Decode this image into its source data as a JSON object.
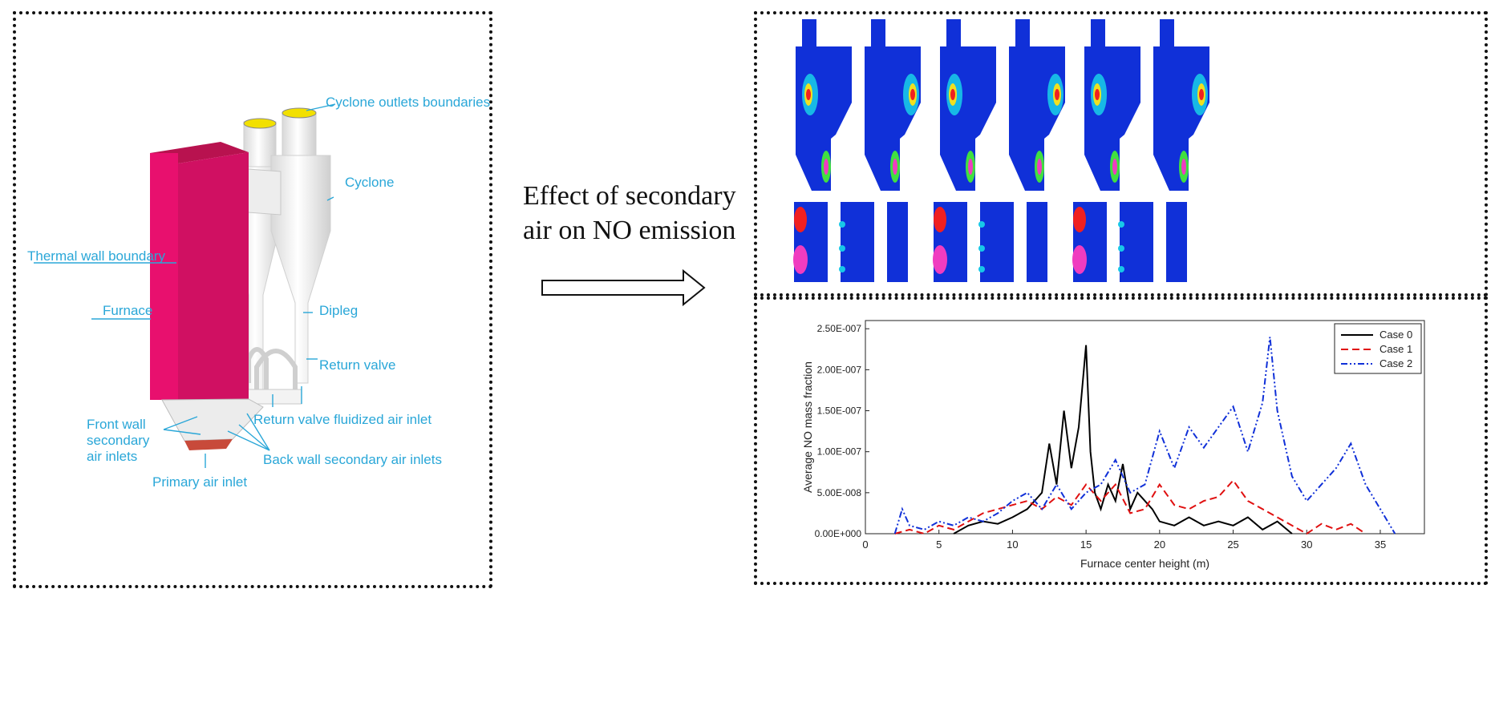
{
  "schematic": {
    "labels": {
      "cyclone_outlets": "Cyclone outlets boundaries",
      "cyclone": "Cyclone",
      "thermal_wall": "Thermal wall boundary",
      "furnace": "Furnace",
      "dipleg": "Dipleg",
      "return_valve": "Return valve",
      "return_valve_air": "Return valve fluidized air inlet",
      "front_wall_1": "Front wall",
      "front_wall_2": "secondary",
      "front_wall_3": "air inlets",
      "back_wall": "Back wall secondary air inlets",
      "primary_air": "Primary air inlet"
    },
    "colors": {
      "furnace": "#e8106e",
      "label": "#2aa7d8"
    }
  },
  "center": {
    "line1": "Effect of secondary",
    "line2": "air on NO emission"
  },
  "contours": {
    "icon": "cfd-contour-panels",
    "colors": [
      "#1030d8",
      "#18c8e8",
      "#40e040",
      "#f0e020",
      "#f02020",
      "#f03cc0"
    ]
  },
  "chart_data": {
    "type": "line",
    "xlabel": "Furnace center height (m)",
    "ylabel": "Average NO mass fraction",
    "xlim": [
      0,
      38
    ],
    "ylim": [
      0,
      2.6e-07
    ],
    "xticks": [
      0,
      5,
      10,
      15,
      20,
      25,
      30,
      35
    ],
    "yticks": [
      0,
      5e-08,
      1e-07,
      1.5e-07,
      2e-07,
      2.5e-07
    ],
    "ytick_labels": [
      "0.00E+000",
      "5.00E-008",
      "1.00E-007",
      "1.50E-007",
      "2.00E-007",
      "2.50E-007"
    ],
    "legend_position": "top-right",
    "series": [
      {
        "name": "Case 0",
        "color": "#000000",
        "dash": "solid",
        "x": [
          6,
          7,
          8,
          9,
          10,
          11,
          12,
          12.5,
          13,
          13.5,
          14,
          14.5,
          15,
          15.3,
          15.6,
          16,
          16.5,
          17,
          17.5,
          18,
          18.5,
          19,
          19.5,
          20,
          21,
          22,
          23,
          24,
          25,
          26,
          27,
          28,
          29
        ],
        "y": [
          0,
          1e-08,
          1.5e-08,
          1.2e-08,
          2e-08,
          3e-08,
          5e-08,
          1.1e-07,
          6e-08,
          1.5e-07,
          8e-08,
          1.3e-07,
          2.3e-07,
          1e-07,
          5e-08,
          3e-08,
          6e-08,
          4e-08,
          8.5e-08,
          3e-08,
          5e-08,
          4e-08,
          3e-08,
          1.5e-08,
          1e-08,
          2e-08,
          1e-08,
          1.5e-08,
          1e-08,
          2e-08,
          5e-09,
          1.5e-08,
          0
        ]
      },
      {
        "name": "Case 1",
        "color": "#e01010",
        "dash": "dashed",
        "x": [
          2,
          3,
          4,
          5,
          6,
          7,
          8,
          9,
          10,
          11,
          12,
          13,
          14,
          15,
          16,
          17,
          18,
          19,
          20,
          21,
          22,
          23,
          24,
          25,
          26,
          27,
          28,
          29,
          30,
          31,
          32,
          33,
          34
        ],
        "y": [
          0,
          5e-09,
          0,
          1e-08,
          5e-09,
          1.5e-08,
          2.5e-08,
          3e-08,
          3.5e-08,
          4e-08,
          3e-08,
          4.5e-08,
          3.5e-08,
          6e-08,
          4e-08,
          6e-08,
          2.5e-08,
          3e-08,
          6e-08,
          3.5e-08,
          3e-08,
          4e-08,
          4.5e-08,
          6.5e-08,
          4e-08,
          3e-08,
          2e-08,
          1e-08,
          0,
          1.2e-08,
          5e-09,
          1.2e-08,
          0
        ]
      },
      {
        "name": "Case 2",
        "color": "#1030d8",
        "dash": "dashdot",
        "x": [
          2,
          2.5,
          3,
          4,
          5,
          6,
          7,
          8,
          9,
          10,
          11,
          12,
          13,
          14,
          15,
          16,
          17,
          18,
          19,
          20,
          21,
          22,
          23,
          24,
          25,
          26,
          27,
          27.5,
          28,
          29,
          30,
          31,
          32,
          33,
          34,
          35,
          36
        ],
        "y": [
          0,
          3e-08,
          1e-08,
          5e-09,
          1.5e-08,
          1e-08,
          2e-08,
          1.5e-08,
          2.5e-08,
          4e-08,
          5e-08,
          3e-08,
          6e-08,
          3e-08,
          5e-08,
          6e-08,
          9e-08,
          5e-08,
          6e-08,
          1.25e-07,
          8e-08,
          1.3e-07,
          1.05e-07,
          1.3e-07,
          1.55e-07,
          1e-07,
          1.6e-07,
          2.4e-07,
          1.5e-07,
          7e-08,
          4e-08,
          6e-08,
          8e-08,
          1.1e-07,
          6e-08,
          3e-08,
          0
        ]
      }
    ]
  }
}
